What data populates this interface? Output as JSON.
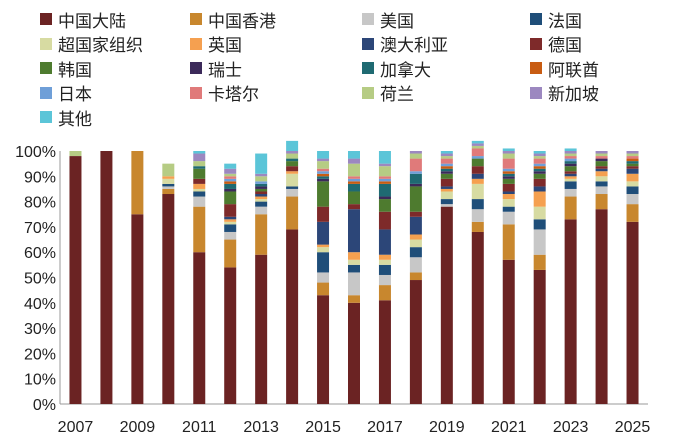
{
  "chart_data": {
    "type": "bar",
    "stacked": true,
    "title": "",
    "xlabel": "",
    "ylabel": "",
    "ylim": [
      0,
      100
    ],
    "yticks": [
      "0%",
      "10%",
      "20%",
      "30%",
      "40%",
      "50%",
      "60%",
      "70%",
      "80%",
      "90%",
      "100%"
    ],
    "xtick_labels": [
      "2007",
      "2009",
      "2011",
      "2013",
      "2015",
      "2017",
      "2019",
      "2021",
      "2023",
      "2025"
    ],
    "categories": [
      "2007",
      "2008",
      "2009",
      "2010",
      "2011",
      "2012",
      "2013",
      "2014",
      "2015",
      "2016",
      "2017",
      "2018",
      "2019",
      "2020",
      "2021",
      "2022",
      "2023",
      "2024",
      "2025"
    ],
    "series": [
      {
        "name": "中国大陆",
        "color": "#6b2323",
        "values": [
          98,
          100,
          75,
          83,
          60,
          54,
          59,
          69,
          43,
          40,
          41,
          49,
          78,
          68,
          57,
          53,
          73,
          77,
          72
        ]
      },
      {
        "name": "中国香港",
        "color": "#c8872e",
        "values": [
          0,
          0,
          25,
          2,
          18,
          11,
          16,
          13,
          5,
          3,
          6,
          3,
          0,
          4,
          14,
          6,
          9,
          6,
          7
        ]
      },
      {
        "name": "美国",
        "color": "#c7c7c7",
        "values": [
          0,
          0,
          0,
          1,
          4,
          3,
          3,
          3,
          4,
          9,
          4,
          6,
          1,
          5,
          5,
          10,
          3,
          3,
          4
        ]
      },
      {
        "name": "法国",
        "color": "#1f4e79",
        "values": [
          0,
          0,
          0,
          1,
          2,
          3,
          2,
          1,
          8,
          3,
          4,
          4,
          2,
          4,
          2,
          4,
          3,
          2,
          3
        ]
      },
      {
        "name": "超国家组织",
        "color": "#d7dba2",
        "values": [
          0,
          0,
          0,
          2,
          1,
          1,
          1,
          5,
          2,
          2,
          2,
          3,
          3,
          6,
          3,
          5,
          1,
          2,
          2
        ]
      },
      {
        "name": "英国",
        "color": "#f5a050",
        "values": [
          0,
          0,
          0,
          1,
          2,
          1,
          1,
          1,
          1,
          3,
          2,
          2,
          1,
          2,
          2,
          6,
          1,
          2,
          3
        ]
      },
      {
        "name": "澳大利亚",
        "color": "#2c4678",
        "values": [
          0,
          0,
          0,
          0,
          0,
          1,
          1,
          0,
          9,
          17,
          10,
          7,
          1,
          2,
          1,
          2,
          1,
          1,
          2
        ]
      },
      {
        "name": "德国",
        "color": "#7e2a2a",
        "values": [
          0,
          0,
          0,
          0,
          2,
          5,
          1,
          2,
          6,
          2,
          7,
          2,
          3,
          3,
          3,
          3,
          1,
          1,
          1
        ]
      },
      {
        "name": "韩国",
        "color": "#4e7b2f",
        "values": [
          0,
          0,
          0,
          0,
          4,
          5,
          1,
          2,
          10,
          5,
          5,
          10,
          2,
          3,
          2,
          2,
          2,
          2,
          1
        ]
      },
      {
        "name": "瑞士",
        "color": "#3c2a5a",
        "values": [
          0,
          0,
          0,
          0,
          0,
          1,
          1,
          0,
          1,
          0,
          1,
          1,
          1,
          0,
          1,
          1,
          1,
          1,
          0
        ]
      },
      {
        "name": "加拿大",
        "color": "#1f6a72",
        "values": [
          0,
          0,
          0,
          0,
          1,
          2,
          1,
          1,
          1,
          3,
          5,
          4,
          1,
          0,
          1,
          1,
          1,
          0,
          1
        ]
      },
      {
        "name": "阿联酋",
        "color": "#c85c12",
        "values": [
          0,
          0,
          0,
          0,
          0,
          1,
          0,
          0,
          1,
          1,
          1,
          0,
          1,
          0,
          1,
          1,
          0,
          0,
          1
        ]
      },
      {
        "name": "日本",
        "color": "#6f9fd8",
        "values": [
          0,
          0,
          0,
          0,
          0,
          1,
          1,
          0,
          1,
          1,
          1,
          1,
          1,
          1,
          1,
          1,
          1,
          0,
          0
        ]
      },
      {
        "name": "卡塔尔",
        "color": "#e07a7a",
        "values": [
          0,
          0,
          0,
          0,
          0,
          1,
          0,
          0,
          1,
          1,
          1,
          5,
          2,
          3,
          4,
          2,
          1,
          1,
          1
        ]
      },
      {
        "name": "荷兰",
        "color": "#b6cc84",
        "values": [
          2,
          0,
          0,
          5,
          2,
          1,
          2,
          2,
          3,
          5,
          4,
          2,
          1,
          1,
          2,
          1,
          1,
          1,
          1
        ]
      },
      {
        "name": "新加坡",
        "color": "#9c88c0",
        "values": [
          0,
          0,
          0,
          0,
          3,
          2,
          1,
          1,
          1,
          2,
          1,
          1,
          1,
          1,
          1,
          1,
          1,
          1,
          1
        ]
      },
      {
        "name": "其他",
        "color": "#5bc5d8",
        "values": [
          0,
          0,
          0,
          0,
          1,
          2,
          8,
          4,
          3,
          3,
          5,
          0,
          1,
          1,
          1,
          1,
          1,
          0,
          0
        ]
      }
    ]
  }
}
